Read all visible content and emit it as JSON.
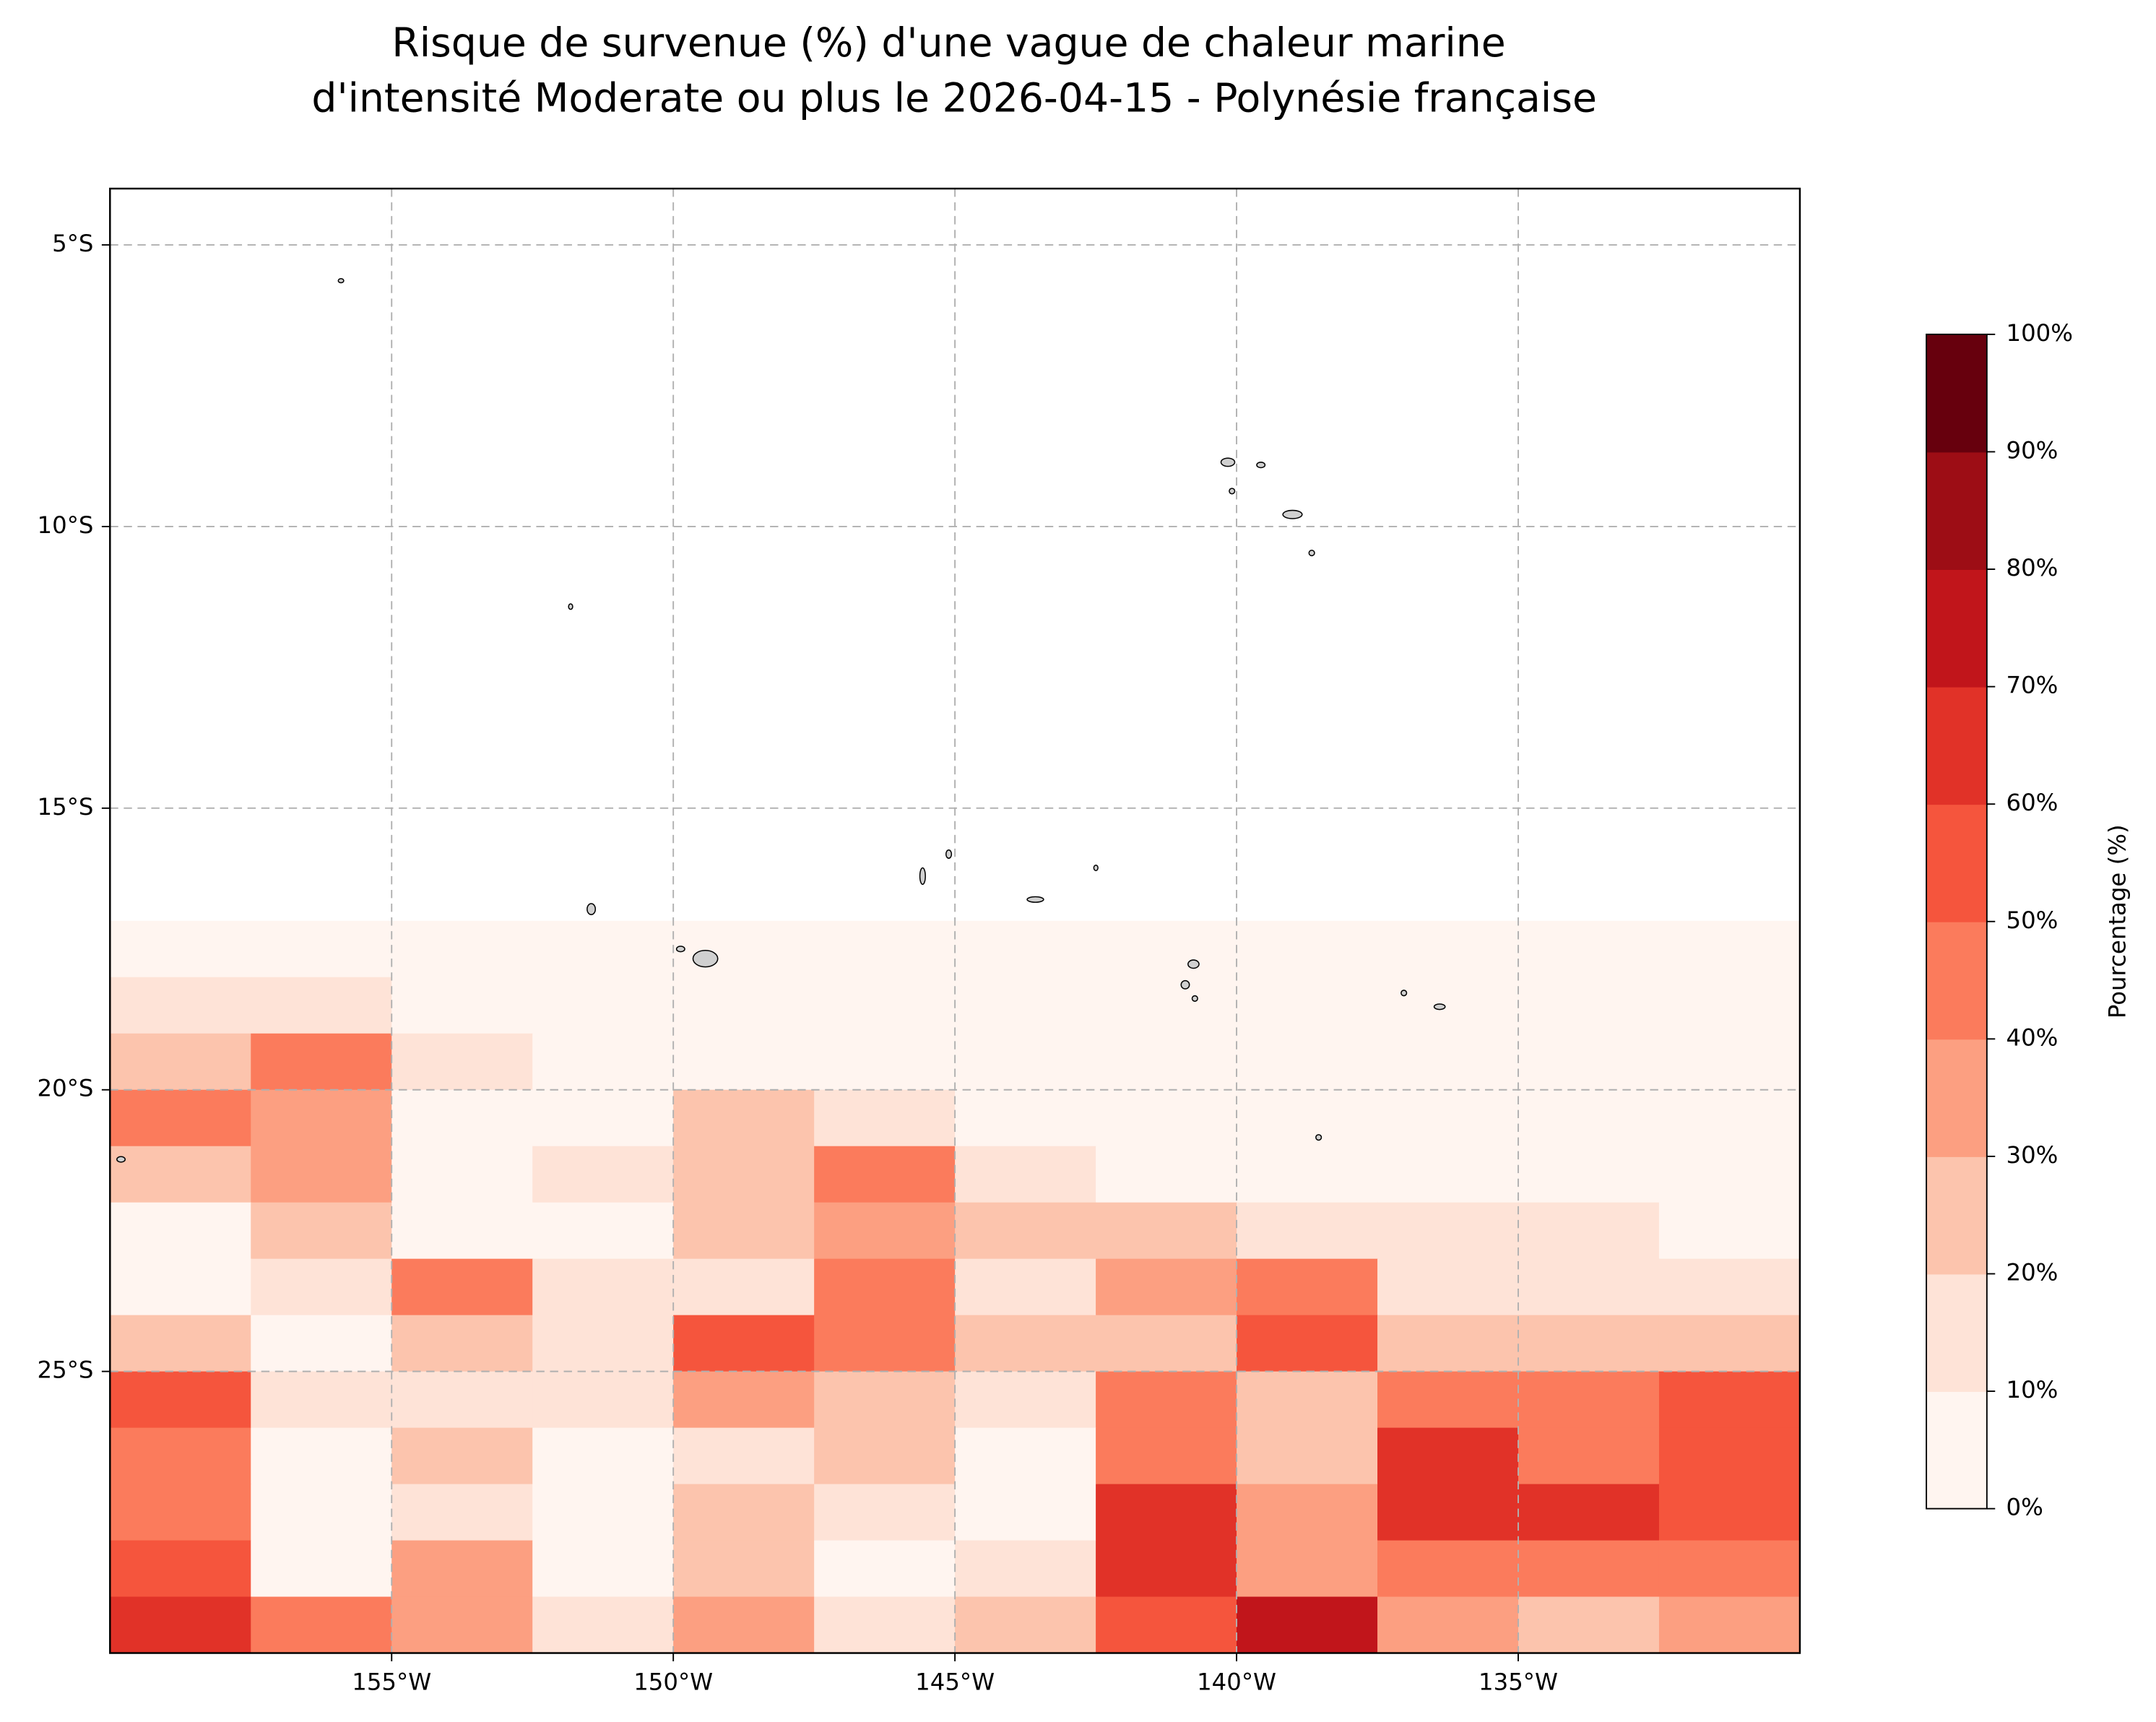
{
  "chart_data": {
    "type": "contour-map",
    "title": [
      "Risque de survenue (%) d'une vague de chaleur marine",
      "d'intensité Moderate ou plus le 2026-04-15 - Polynésie française"
    ],
    "xlim": [
      -160,
      -130
    ],
    "ylim": [
      -30,
      -4
    ],
    "xticks": [
      {
        "value": -155,
        "label": "155°W"
      },
      {
        "value": -150,
        "label": "150°W"
      },
      {
        "value": -145,
        "label": "145°W"
      },
      {
        "value": -140,
        "label": "140°W"
      },
      {
        "value": -135,
        "label": "135°W"
      }
    ],
    "yticks": [
      {
        "value": -5,
        "label": "5°S"
      },
      {
        "value": -10,
        "label": "10°S"
      },
      {
        "value": -15,
        "label": "15°S"
      },
      {
        "value": -20,
        "label": "20°S"
      },
      {
        "value": -25,
        "label": "25°S"
      }
    ],
    "grid": true,
    "field": {
      "lon": [
        -158.75,
        -156.25,
        -153.75,
        -151.25,
        -148.75,
        -146.25,
        -143.75,
        -141.25,
        -138.75,
        -136.25,
        -133.75,
        -131.25
      ],
      "lat": [
        -17.5,
        -18.5,
        -19.5,
        -20.5,
        -21.5,
        -22.5,
        -23.5,
        -24.5,
        -25.5,
        -26.5,
        -27.5,
        -28.5,
        -29.5
      ],
      "values": [
        [
          5,
          5,
          5,
          5,
          5,
          5,
          0,
          5,
          5,
          0,
          0,
          0
        ],
        [
          15,
          10,
          5,
          5,
          5,
          5,
          5,
          5,
          5,
          5,
          0,
          0
        ],
        [
          25,
          40,
          15,
          5,
          5,
          5,
          5,
          5,
          5,
          5,
          5,
          0
        ],
        [
          45,
          35,
          5,
          5,
          25,
          15,
          5,
          5,
          5,
          5,
          5,
          0
        ],
        [
          25,
          35,
          5,
          10,
          25,
          40,
          15,
          5,
          5,
          5,
          5,
          5
        ],
        [
          5,
          25,
          5,
          5,
          20,
          35,
          25,
          25,
          15,
          10,
          10,
          5
        ],
        [
          5,
          10,
          40,
          10,
          15,
          45,
          15,
          30,
          45,
          15,
          15,
          15
        ],
        [
          25,
          5,
          25,
          15,
          55,
          45,
          25,
          25,
          55,
          25,
          25,
          25
        ],
        [
          50,
          15,
          15,
          10,
          35,
          20,
          15,
          45,
          25,
          45,
          45,
          55
        ],
        [
          40,
          5,
          20,
          5,
          15,
          20,
          5,
          45,
          25,
          60,
          45,
          55
        ],
        [
          45,
          0,
          15,
          5,
          25,
          15,
          5,
          60,
          35,
          60,
          65,
          50
        ],
        [
          55,
          5,
          30,
          5,
          25,
          5,
          10,
          65,
          35,
          45,
          45,
          45
        ],
        [
          65,
          40,
          35,
          15,
          30,
          15,
          25,
          55,
          75,
          35,
          25,
          35
        ]
      ]
    },
    "colorbar": {
      "label": "Pourcentage (%)",
      "colors": [
        "#fff5f0",
        "#fee3d7",
        "#fcc4ad",
        "#fc9f81",
        "#fb7b5c",
        "#f5553d",
        "#e13228",
        "#c1151b",
        "#9d0d15",
        "#67000d"
      ],
      "ticks": [
        {
          "value": 0,
          "label": "0%"
        },
        {
          "value": 10,
          "label": "10%"
        },
        {
          "value": 20,
          "label": "20%"
        },
        {
          "value": 30,
          "label": "30%"
        },
        {
          "value": 40,
          "label": "40%"
        },
        {
          "value": 50,
          "label": "50%"
        },
        {
          "value": 60,
          "label": "60%"
        },
        {
          "value": 70,
          "label": "70%"
        },
        {
          "value": 80,
          "label": "80%"
        },
        {
          "value": 90,
          "label": "90%"
        },
        {
          "value": 100,
          "label": "100%"
        }
      ]
    }
  }
}
